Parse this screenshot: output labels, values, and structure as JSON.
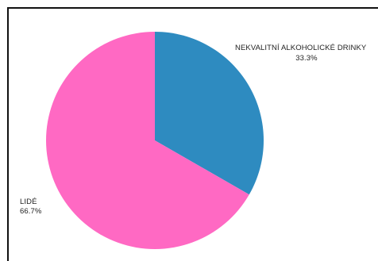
{
  "chart_data": {
    "type": "pie",
    "title": "",
    "slices": [
      {
        "label": "NEKVALITNÍ ALKOHOLICKÉ DRINKY",
        "value": 33.3,
        "display": "33.3%",
        "color": "#2e8bc0"
      },
      {
        "label": "LIDÉ",
        "value": 66.7,
        "display": "66.7%",
        "color": "#ff69c3"
      }
    ],
    "legend": "none"
  }
}
